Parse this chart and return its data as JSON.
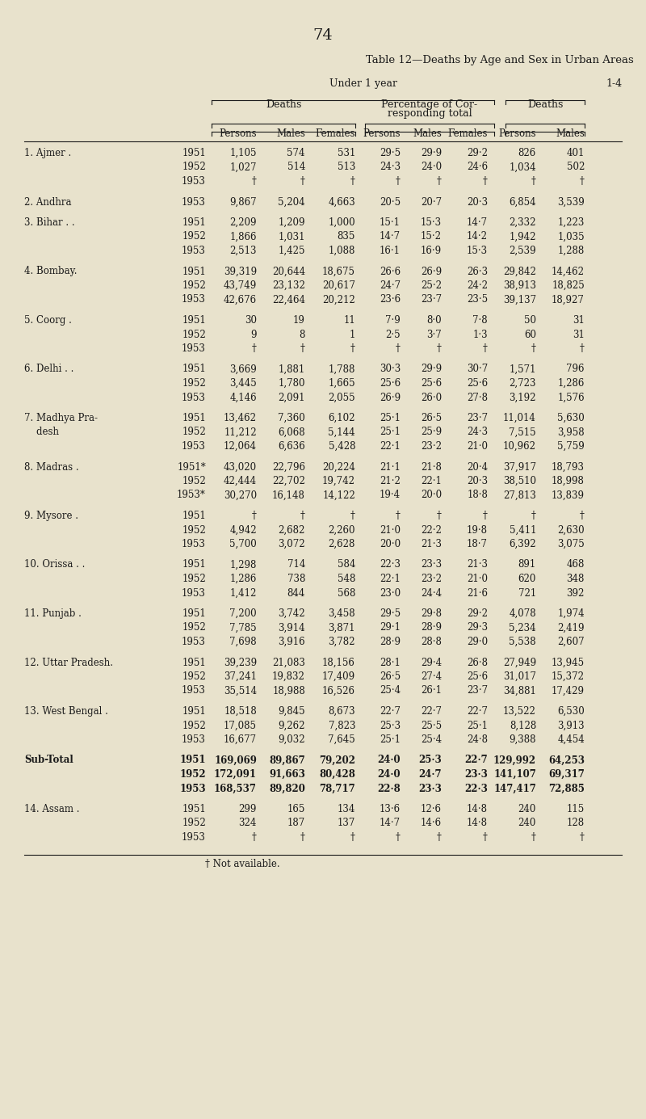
{
  "page_number": "74",
  "title": "Table 12—Deaths by Age and Sex in Urban Areas",
  "bg_color": "#e8e2cc",
  "footnote": "† Not available.",
  "rows": [
    {
      "name": "1. Ajmer .",
      "dots": ".",
      "year": "1951",
      "d_persons": "1,105",
      "d_males": "574",
      "d_females": "531",
      "p_persons": "29·5",
      "p_males": "29·9",
      "p_females": "29·2",
      "d14_persons": "826",
      "d14_males": "401"
    },
    {
      "name": "",
      "dots": "",
      "year": "1952",
      "d_persons": "1,027",
      "d_males": "514",
      "d_females": "513",
      "p_persons": "24·3",
      "p_males": "24·0",
      "p_females": "24·6",
      "d14_persons": "1,034",
      "d14_males": "502"
    },
    {
      "name": "",
      "dots": "",
      "year": "1953",
      "d_persons": "†",
      "d_males": "†",
      "d_females": "†",
      "p_persons": "†",
      "p_males": "†",
      "p_females": "†",
      "d14_persons": "†",
      "d14_males": "†"
    },
    {
      "name": "2. Andhra",
      "dots": ".",
      "year": "1953",
      "d_persons": "9,867",
      "d_males": "5,204",
      "d_females": "4,663",
      "p_persons": "20·5",
      "p_males": "20·7",
      "p_females": "20·3",
      "d14_persons": "6,854",
      "d14_males": "3,539"
    },
    {
      "name": "3. Bihar . .",
      "dots": "",
      "year": "1951",
      "d_persons": "2,209",
      "d_males": "1,209",
      "d_females": "1,000",
      "p_persons": "15·1",
      "p_males": "15·3",
      "p_females": "14·7",
      "d14_persons": "2,332",
      "d14_males": "1,223"
    },
    {
      "name": "",
      "dots": "",
      "year": "1952",
      "d_persons": "1,866",
      "d_males": "1,031",
      "d_females": "835",
      "p_persons": "14·7",
      "p_males": "15·2",
      "p_females": "14·2",
      "d14_persons": "1,942",
      "d14_males": "1,035"
    },
    {
      "name": "",
      "dots": "",
      "year": "1953",
      "d_persons": "2,513",
      "d_males": "1,425",
      "d_females": "1,088",
      "p_persons": "16·1",
      "p_males": "16·9",
      "p_females": "15·3",
      "d14_persons": "2,539",
      "d14_males": "1,288"
    },
    {
      "name": "4. Bombay.",
      "dots": "",
      "year": "1951",
      "d_persons": "39,319",
      "d_males": "20,644",
      "d_females": "18,675",
      "p_persons": "26·6",
      "p_males": "26·9",
      "p_females": "26·3",
      "d14_persons": "29,842",
      "d14_males": "14,462"
    },
    {
      "name": "",
      "dots": "",
      "year": "1952",
      "d_persons": "43,749",
      "d_males": "23,132",
      "d_females": "20,617",
      "p_persons": "24·7",
      "p_males": "25·2",
      "p_females": "24·2",
      "d14_persons": "38,913",
      "d14_males": "18,825"
    },
    {
      "name": "",
      "dots": "",
      "year": "1953",
      "d_persons": "42,676",
      "d_males": "22,464",
      "d_females": "20,212",
      "p_persons": "23·6",
      "p_males": "23·7",
      "p_females": "23·5",
      "d14_persons": "39,137",
      "d14_males": "18,927"
    },
    {
      "name": "5. Coorg .",
      "dots": "",
      "year": "1951",
      "d_persons": "30",
      "d_males": "19",
      "d_females": "11",
      "p_persons": "7·9",
      "p_males": "8·0",
      "p_females": "7·8",
      "d14_persons": "50",
      "d14_males": "31"
    },
    {
      "name": "",
      "dots": "",
      "year": "1952",
      "d_persons": "9",
      "d_males": "8",
      "d_females": "1",
      "p_persons": "2·5",
      "p_males": "3·7",
      "p_females": "1·3",
      "d14_persons": "60",
      "d14_males": "31"
    },
    {
      "name": "",
      "dots": "",
      "year": "1953",
      "d_persons": "†",
      "d_males": "†",
      "d_females": "†",
      "p_persons": "†",
      "p_males": "†",
      "p_females": "†",
      "d14_persons": "†",
      "d14_males": "†"
    },
    {
      "name": "6. Delhi . .",
      "dots": "",
      "year": "1951",
      "d_persons": "3,669",
      "d_males": "1,881",
      "d_females": "1,788",
      "p_persons": "30·3",
      "p_males": "29·9",
      "p_females": "30·7",
      "d14_persons": "1,571",
      "d14_males": "796"
    },
    {
      "name": "",
      "dots": "",
      "year": "1952",
      "d_persons": "3,445",
      "d_males": "1,780",
      "d_females": "1,665",
      "p_persons": "25·6",
      "p_males": "25·6",
      "p_females": "25·6",
      "d14_persons": "2,723",
      "d14_males": "1,286"
    },
    {
      "name": "",
      "dots": "",
      "year": "1953",
      "d_persons": "4,146",
      "d_males": "2,091",
      "d_females": "2,055",
      "p_persons": "26·9",
      "p_males": "26·0",
      "p_females": "27·8",
      "d14_persons": "3,192",
      "d14_males": "1,576"
    },
    {
      "name": "7. Madhya Pra-",
      "name2": "    desh",
      "dots": "",
      "year": "1951",
      "d_persons": "13,462",
      "d_males": "7,360",
      "d_females": "6,102",
      "p_persons": "25·1",
      "p_males": "26·5",
      "p_females": "23·7",
      "d14_persons": "11,014",
      "d14_males": "5,630"
    },
    {
      "name": "",
      "dots": "",
      "year": "1952",
      "d_persons": "11,212",
      "d_males": "6,068",
      "d_females": "5,144",
      "p_persons": "25·1",
      "p_males": "25·9",
      "p_females": "24·3",
      "d14_persons": "7,515",
      "d14_males": "3,958"
    },
    {
      "name": "",
      "dots": "",
      "year": "1953",
      "d_persons": "12,064",
      "d_males": "6,636",
      "d_females": "5,428",
      "p_persons": "22·1",
      "p_males": "23·2",
      "p_females": "21·0",
      "d14_persons": "10,962",
      "d14_males": "5,759"
    },
    {
      "name": "8. Madras .",
      "dots": "",
      "year": "1951*",
      "d_persons": "43,020",
      "d_males": "22,796",
      "d_females": "20,224",
      "p_persons": "21·1",
      "p_males": "21·8",
      "p_females": "20·4",
      "d14_persons": "37,917",
      "d14_males": "18,793"
    },
    {
      "name": "",
      "dots": "",
      "year": "1952",
      "d_persons": "42,444",
      "d_males": "22,702",
      "d_females": "19,742",
      "p_persons": "21·2",
      "p_males": "22·1",
      "p_females": "20·3",
      "d14_persons": "38,510",
      "d14_males": "18,998"
    },
    {
      "name": "",
      "dots": "",
      "year": "1953*",
      "d_persons": "30,270",
      "d_males": "16,148",
      "d_females": "14,122",
      "p_persons": "19·4",
      "p_males": "20·0",
      "p_females": "18·8",
      "d14_persons": "27,813",
      "d14_males": "13,839"
    },
    {
      "name": "9. Mysore .",
      "dots": "",
      "year": "1951",
      "d_persons": "†",
      "d_males": "†",
      "d_females": "†",
      "p_persons": "†",
      "p_males": "†",
      "p_females": "†",
      "d14_persons": "†",
      "d14_males": "†"
    },
    {
      "name": "",
      "dots": "",
      "year": "1952",
      "d_persons": "4,942",
      "d_males": "2,682",
      "d_females": "2,260",
      "p_persons": "21·0",
      "p_males": "22·2",
      "p_females": "19·8",
      "d14_persons": "5,411",
      "d14_males": "2,630"
    },
    {
      "name": "",
      "dots": "",
      "year": "1953",
      "d_persons": "5,700",
      "d_males": "3,072",
      "d_females": "2,628",
      "p_persons": "20·0",
      "p_males": "21·3",
      "p_females": "18·7",
      "d14_persons": "6,392",
      "d14_males": "3,075"
    },
    {
      "name": "10. Orissa . .",
      "dots": "",
      "year": "1951",
      "d_persons": "1,298",
      "d_males": "714",
      "d_females": "584",
      "p_persons": "22·3",
      "p_males": "23·3",
      "p_females": "21·3",
      "d14_persons": "891",
      "d14_males": "468"
    },
    {
      "name": "",
      "dots": "",
      "year": "1952",
      "d_persons": "1,286",
      "d_males": "738",
      "d_females": "548",
      "p_persons": "22·1",
      "p_males": "23·2",
      "p_females": "21·0",
      "d14_persons": "620",
      "d14_males": "348"
    },
    {
      "name": "",
      "dots": "",
      "year": "1953",
      "d_persons": "1,412",
      "d_males": "844",
      "d_females": "568",
      "p_persons": "23·0",
      "p_males": "24·4",
      "p_females": "21·6",
      "d14_persons": "721",
      "d14_males": "392"
    },
    {
      "name": "11. Punjab .",
      "dots": "",
      "year": "1951",
      "d_persons": "7,200",
      "d_males": "3,742",
      "d_females": "3,458",
      "p_persons": "29·5",
      "p_males": "29·8",
      "p_females": "29·2",
      "d14_persons": "4,078",
      "d14_males": "1,974"
    },
    {
      "name": "",
      "dots": "",
      "year": "1952",
      "d_persons": "7,785",
      "d_males": "3,914",
      "d_females": "3,871",
      "p_persons": "29·1",
      "p_males": "28·9",
      "p_females": "29·3",
      "d14_persons": "5,234",
      "d14_males": "2,419"
    },
    {
      "name": "",
      "dots": "",
      "year": "1953",
      "d_persons": "7,698",
      "d_males": "3,916",
      "d_females": "3,782",
      "p_persons": "28·9",
      "p_males": "28·8",
      "p_females": "29·0",
      "d14_persons": "5,538",
      "d14_males": "2,607"
    },
    {
      "name": "12. Uttar Pradesh.",
      "dots": "",
      "year": "1951",
      "d_persons": "39,239",
      "d_males": "21,083",
      "d_females": "18,156",
      "p_persons": "28·1",
      "p_males": "29·4",
      "p_females": "26·8",
      "d14_persons": "27,949",
      "d14_males": "13,945"
    },
    {
      "name": "",
      "dots": "",
      "year": "1952",
      "d_persons": "37,241",
      "d_males": "19,832",
      "d_females": "17,409",
      "p_persons": "26·5",
      "p_males": "27·4",
      "p_females": "25·6",
      "d14_persons": "31,017",
      "d14_males": "15,372"
    },
    {
      "name": "",
      "dots": "",
      "year": "1953",
      "d_persons": "35,514",
      "d_males": "18,988",
      "d_females": "16,526",
      "p_persons": "25·4",
      "p_males": "26·1",
      "p_females": "23·7",
      "d14_persons": "34,881",
      "d14_males": "17,429"
    },
    {
      "name": "13. West Bengal .",
      "dots": "",
      "year": "1951",
      "d_persons": "18,518",
      "d_males": "9,845",
      "d_females": "8,673",
      "p_persons": "22·7",
      "p_males": "22·7",
      "p_females": "22·7",
      "d14_persons": "13,522",
      "d14_males": "6,530"
    },
    {
      "name": "",
      "dots": "",
      "year": "1952",
      "d_persons": "17,085",
      "d_males": "9,262",
      "d_females": "7,823",
      "p_persons": "25·3",
      "p_males": "25·5",
      "p_females": "25·1",
      "d14_persons": "8,128",
      "d14_males": "3,913"
    },
    {
      "name": "",
      "dots": "",
      "year": "1953",
      "d_persons": "16,677",
      "d_males": "9,032",
      "d_females": "7,645",
      "p_persons": "25·1",
      "p_males": "25·4",
      "p_females": "24·8",
      "d14_persons": "9,388",
      "d14_males": "4,454"
    },
    {
      "name": "Sub-Total",
      "dots": "",
      "year": "1951",
      "d_persons": "169,069",
      "d_males": "89,867",
      "d_females": "79,202",
      "p_persons": "24·0",
      "p_males": "25·3",
      "p_females": "22·7",
      "d14_persons": "129,992",
      "d14_males": "64,253",
      "bold": true
    },
    {
      "name": "",
      "dots": "",
      "year": "1952",
      "d_persons": "172,091",
      "d_males": "91,663",
      "d_females": "80,428",
      "p_persons": "24·0",
      "p_males": "24·7",
      "p_females": "23·3",
      "d14_persons": "141,107",
      "d14_males": "69,317",
      "bold": true
    },
    {
      "name": "",
      "dots": "",
      "year": "1953",
      "d_persons": "168,537",
      "d_males": "89,820",
      "d_females": "78,717",
      "p_persons": "22·8",
      "p_males": "23·3",
      "p_females": "22·3",
      "d14_persons": "147,417",
      "d14_males": "72,885",
      "bold": true
    },
    {
      "name": "14. Assam .",
      "dots": "",
      "year": "1951",
      "d_persons": "299",
      "d_males": "165",
      "d_females": "134",
      "p_persons": "13·6",
      "p_males": "12·6",
      "p_females": "14·8",
      "d14_persons": "240",
      "d14_males": "115"
    },
    {
      "name": "",
      "dots": "",
      "year": "1952",
      "d_persons": "324",
      "d_males": "187",
      "d_females": "137",
      "p_persons": "14·7",
      "p_males": "14·6",
      "p_females": "14·8",
      "d14_persons": "240",
      "d14_males": "128"
    },
    {
      "name": "",
      "dots": "",
      "year": "1953",
      "d_persons": "†",
      "d_males": "†",
      "d_females": "†",
      "p_persons": "†",
      "p_males": "†",
      "p_females": "†",
      "d14_persons": "†",
      "d14_males": "†"
    }
  ]
}
